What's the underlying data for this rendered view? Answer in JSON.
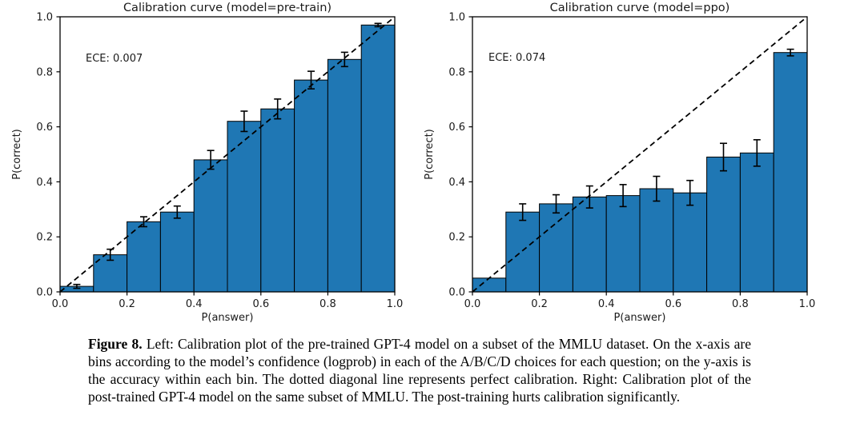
{
  "figure": {
    "caption_label": "Figure 8.",
    "caption_text": "Left: Calibration plot of the pre-trained GPT-4 model on a subset of the MMLU dataset. On the x-axis are bins according to the model’s confidence (logprob) in each of the A/B/C/D choices for each question; on the y-axis is the accuracy within each bin. The dotted diagonal line represents perfect calibration. Right: Calibration plot of the post-trained GPT-4 model on the same subset of MMLU. The post-training hurts calibration significantly."
  },
  "chart_data": [
    {
      "type": "bar",
      "title": "Calibration curve (model=pre-train)",
      "annotation": "ECE: 0.007",
      "xlabel": "P(answer)",
      "ylabel": "P(correct)",
      "xlim": [
        0,
        1
      ],
      "ylim": [
        0,
        1
      ],
      "grid": false,
      "diagonal_reference_line": true,
      "xticks": [
        "0.0",
        "0.2",
        "0.4",
        "0.6",
        "0.8",
        "1.0"
      ],
      "yticks": [
        "0.0",
        "0.2",
        "0.4",
        "0.6",
        "0.8",
        "1.0"
      ],
      "bin_edges": [
        0.0,
        0.1,
        0.2,
        0.3,
        0.4,
        0.5,
        0.6,
        0.7,
        0.8,
        0.9,
        1.0
      ],
      "values": [
        0.02,
        0.135,
        0.255,
        0.29,
        0.48,
        0.62,
        0.665,
        0.77,
        0.845,
        0.97
      ],
      "errors": [
        0.007,
        0.02,
        0.018,
        0.022,
        0.034,
        0.037,
        0.036,
        0.032,
        0.026,
        0.006
      ],
      "bar_color": "#1f77b4",
      "edge_color": "#000000",
      "line_color": "#000000"
    },
    {
      "type": "bar",
      "title": "Calibration curve (model=ppo)",
      "annotation": "ECE: 0.074",
      "xlabel": "P(answer)",
      "ylabel": "P(correct)",
      "xlim": [
        0,
        1
      ],
      "ylim": [
        0,
        1
      ],
      "grid": false,
      "diagonal_reference_line": true,
      "xticks": [
        "0.0",
        "0.2",
        "0.4",
        "0.6",
        "0.8",
        "1.0"
      ],
      "yticks": [
        "0.0",
        "0.2",
        "0.4",
        "0.6",
        "0.8",
        "1.0"
      ],
      "bin_edges": [
        0.0,
        0.1,
        0.2,
        0.3,
        0.4,
        0.5,
        0.6,
        0.7,
        0.8,
        0.9,
        1.0
      ],
      "values": [
        0.05,
        0.29,
        0.32,
        0.345,
        0.35,
        0.375,
        0.36,
        0.49,
        0.505,
        0.87
      ],
      "errors": [
        0,
        0.03,
        0.033,
        0.04,
        0.04,
        0.045,
        0.045,
        0.05,
        0.048,
        0.012
      ],
      "bar_color": "#1f77b4",
      "edge_color": "#000000",
      "line_color": "#000000"
    }
  ]
}
